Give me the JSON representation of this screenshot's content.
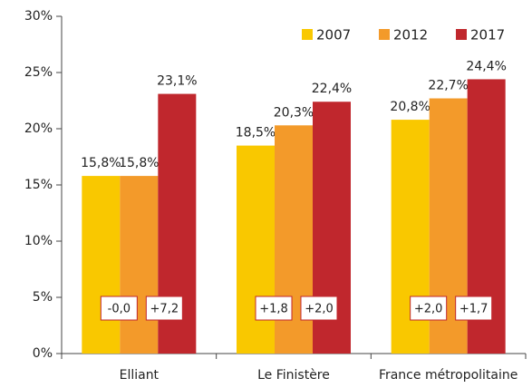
{
  "chart_data": {
    "type": "bar",
    "categories": [
      "Elliant",
      "Le Finistère",
      "France métropolitaine"
    ],
    "series": [
      {
        "name": "2007",
        "color": "#f9c800",
        "values": [
          15.8,
          18.5,
          20.8
        ],
        "value_labels": [
          "15,8%",
          "18,5%",
          "20,8%"
        ]
      },
      {
        "name": "2012",
        "color": "#f39a2a",
        "values": [
          15.8,
          20.3,
          22.7
        ],
        "value_labels": [
          "15,8%",
          "20,3%",
          "22,7%"
        ]
      },
      {
        "name": "2017",
        "color": "#c0272d",
        "values": [
          23.1,
          22.4,
          24.4
        ],
        "value_labels": [
          "23,1%",
          "22,4%",
          "24,4%"
        ]
      }
    ],
    "annotations": [
      [
        "-0,0",
        "+7,2"
      ],
      [
        "+1,8",
        "+2,0"
      ],
      [
        "+2,0",
        "+1,7"
      ]
    ],
    "ylim": [
      0,
      30
    ],
    "yticks": [
      {
        "value": 0,
        "label": "0%"
      },
      {
        "value": 5,
        "label": "5%"
      },
      {
        "value": 10,
        "label": "10%"
      },
      {
        "value": 15,
        "label": "15%"
      },
      {
        "value": 20,
        "label": "20%"
      },
      {
        "value": 25,
        "label": "25%"
      },
      {
        "value": 30,
        "label": "30%"
      }
    ],
    "legend": "top-right",
    "grid": false
  }
}
